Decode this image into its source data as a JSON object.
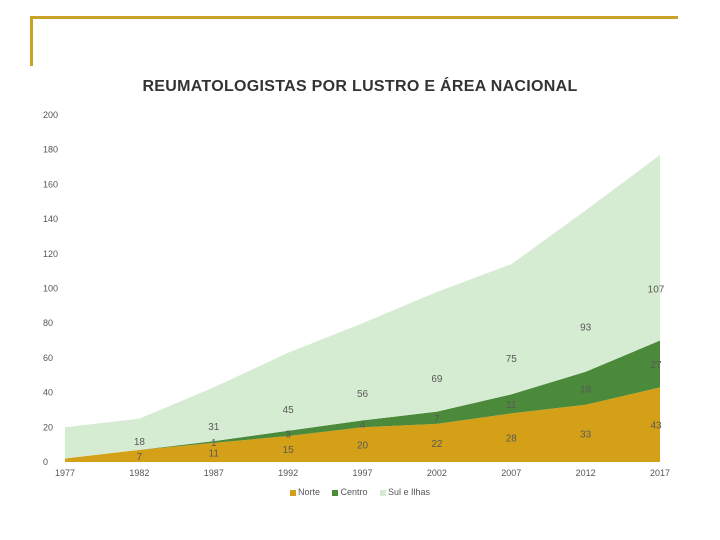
{
  "title": "REUMATOLOGISTAS POR LUSTRO E ÁREA NACIONAL",
  "colors": {
    "frame": "#c9a227",
    "norte": "#d4a017",
    "centro": "#4a8a3a",
    "sul": "#d6ecd2"
  },
  "chart_data": {
    "type": "area",
    "stacked": true,
    "title": "REUMATOLOGISTAS POR LUSTRO E ÁREA NACIONAL",
    "x": [
      "1977",
      "1982",
      "1987",
      "1992",
      "1997",
      "2002",
      "2007",
      "2012",
      "2017"
    ],
    "ylim": [
      0,
      200
    ],
    "yticks": [
      "0",
      "20",
      "40",
      "60",
      "80",
      "100",
      "120",
      "140",
      "160",
      "180",
      "200"
    ],
    "grid": false,
    "legend_position": "bottom",
    "series": [
      {
        "name": "Norte",
        "values": [
          2,
          7,
          11,
          15,
          20,
          22,
          28,
          33,
          43
        ],
        "labels": [
          "",
          "7",
          "11",
          "15",
          "20",
          "22",
          "28",
          "33",
          "43"
        ]
      },
      {
        "name": "Centro",
        "values": [
          0,
          0,
          1,
          3,
          4,
          7,
          11,
          19,
          27
        ],
        "labels": [
          "",
          "",
          "1",
          "3",
          "4",
          "7",
          "11",
          "19",
          "27"
        ]
      },
      {
        "name": "Sul e Ilhas",
        "values": [
          18,
          18,
          31,
          45,
          56,
          69,
          75,
          93,
          107
        ],
        "labels": [
          "",
          "18",
          "31",
          "45",
          "56",
          "69",
          "75",
          "93",
          "107"
        ]
      }
    ]
  }
}
